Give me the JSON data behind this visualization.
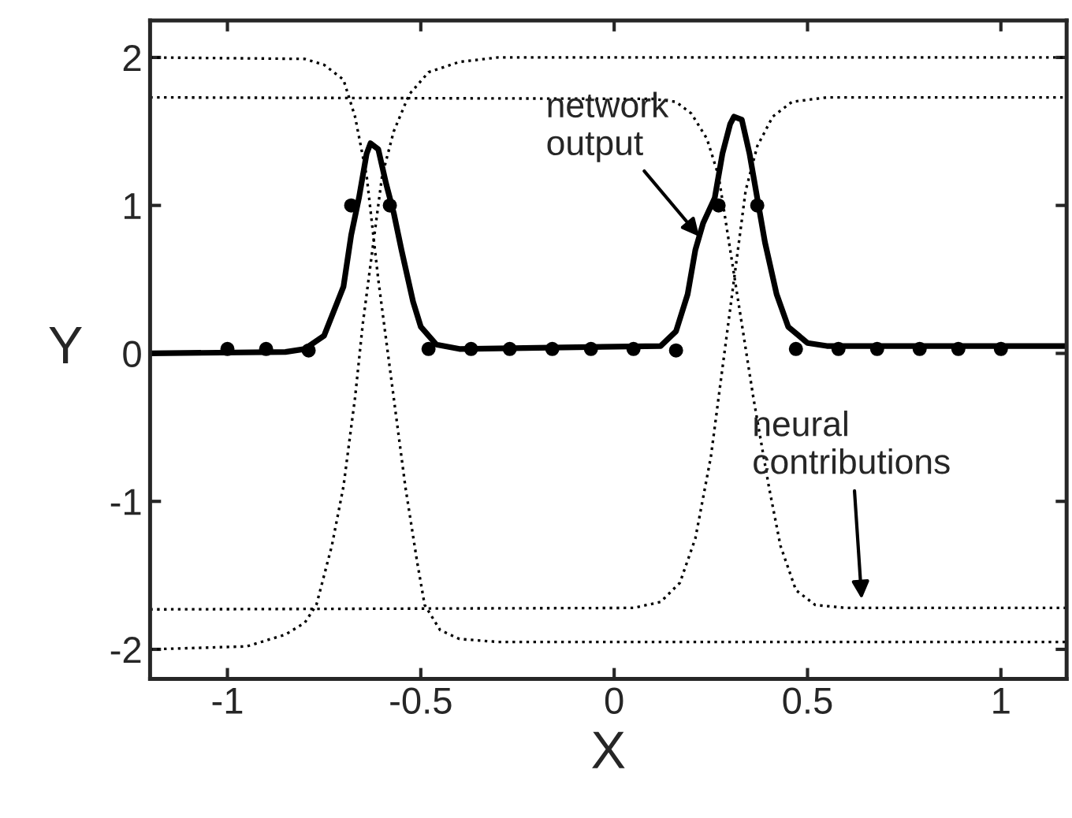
{
  "chart_data": {
    "type": "line",
    "xlabel": "X",
    "ylabel": "Y",
    "xlim": [
      -1.2,
      1.17
    ],
    "ylim": [
      -2.2,
      2.25
    ],
    "xticks": [
      -1,
      -0.5,
      0,
      0.5,
      1
    ],
    "yticks": [
      -2,
      -1,
      0,
      1,
      2
    ],
    "grid": false,
    "legend": false,
    "series": [
      {
        "type": "scatter",
        "marker": "circle",
        "color": "#000000",
        "x": [
          -1.0,
          -0.9,
          -0.79,
          -0.68,
          -0.58,
          -0.48,
          -0.37,
          -0.27,
          -0.16,
          -0.06,
          0.05,
          0.16,
          0.27,
          0.37,
          0.47,
          0.58,
          0.68,
          0.79,
          0.89,
          1.0
        ],
        "values": [
          0.03,
          0.03,
          0.02,
          1.0,
          1.0,
          0.03,
          0.03,
          0.03,
          0.03,
          0.03,
          0.03,
          0.02,
          1.0,
          1.0,
          0.03,
          0.03,
          0.03,
          0.03,
          0.03,
          0.03
        ]
      },
      {
        "line_style": "solid",
        "color": "#000000",
        "x": [
          -1.2,
          -0.85,
          -0.8,
          -0.75,
          -0.7,
          -0.68,
          -0.66,
          -0.64,
          -0.63,
          -0.61,
          -0.59,
          -0.57,
          -0.55,
          -0.52,
          -0.5,
          -0.46,
          -0.4,
          0.12,
          0.16,
          0.19,
          0.21,
          0.23,
          0.26,
          0.28,
          0.3,
          0.31,
          0.33,
          0.35,
          0.37,
          0.39,
          0.42,
          0.45,
          0.5,
          0.55,
          1.17
        ],
        "values": [
          0.0,
          0.01,
          0.03,
          0.12,
          0.45,
          0.8,
          1.05,
          1.35,
          1.42,
          1.38,
          1.15,
          0.95,
          0.7,
          0.35,
          0.18,
          0.06,
          0.03,
          0.05,
          0.15,
          0.4,
          0.7,
          0.88,
          1.05,
          1.35,
          1.55,
          1.6,
          1.58,
          1.35,
          1.05,
          0.75,
          0.4,
          0.18,
          0.07,
          0.05,
          0.05
        ]
      },
      {
        "line_style": "dotted",
        "color": "#000000",
        "x": [
          -1.2,
          -0.8,
          -0.75,
          -0.7,
          -0.67,
          -0.64,
          -0.61,
          -0.59,
          -0.57,
          -0.54,
          -0.51,
          -0.49,
          -0.45,
          -0.4,
          -0.3,
          1.17
        ],
        "values": [
          2.0,
          1.99,
          1.95,
          1.85,
          1.6,
          1.2,
          0.5,
          0.1,
          -0.3,
          -0.9,
          -1.4,
          -1.7,
          -1.87,
          -1.93,
          -1.95,
          -1.95
        ]
      },
      {
        "line_style": "dotted",
        "color": "#000000",
        "x": [
          -1.2,
          -0.95,
          -0.85,
          -0.8,
          -0.77,
          -0.73,
          -0.7,
          -0.67,
          -0.65,
          -0.62,
          -0.6,
          -0.57,
          -0.53,
          -0.48,
          -0.4,
          -0.3,
          1.17
        ],
        "values": [
          -2.0,
          -1.98,
          -1.9,
          -1.82,
          -1.7,
          -1.3,
          -0.9,
          -0.3,
          0.2,
          0.8,
          1.2,
          1.5,
          1.75,
          1.9,
          1.97,
          2.0,
          2.0
        ]
      },
      {
        "line_style": "dotted",
        "color": "#000000",
        "x": [
          -1.2,
          0.1,
          0.16,
          0.2,
          0.24,
          0.27,
          0.3,
          0.33,
          0.36,
          0.4,
          0.43,
          0.47,
          0.52,
          0.6,
          1.17
        ],
        "values": [
          1.73,
          1.72,
          1.7,
          1.62,
          1.45,
          1.2,
          0.7,
          0.2,
          -0.3,
          -0.9,
          -1.3,
          -1.6,
          -1.7,
          -1.72,
          -1.72
        ]
      },
      {
        "line_style": "dotted",
        "color": "#000000",
        "x": [
          -1.2,
          0.05,
          0.12,
          0.17,
          0.21,
          0.25,
          0.28,
          0.31,
          0.34,
          0.37,
          0.41,
          0.46,
          0.55,
          1.17
        ],
        "values": [
          -1.73,
          -1.72,
          -1.68,
          -1.55,
          -1.25,
          -0.7,
          -0.1,
          0.5,
          1.1,
          1.4,
          1.6,
          1.7,
          1.73,
          1.73
        ]
      }
    ],
    "annotations": [
      {
        "text": "network\noutput",
        "x": 0.22,
        "y": 0.79
      },
      {
        "text": "neural\ncontributions",
        "x": 0.64,
        "y": -1.66
      }
    ]
  }
}
